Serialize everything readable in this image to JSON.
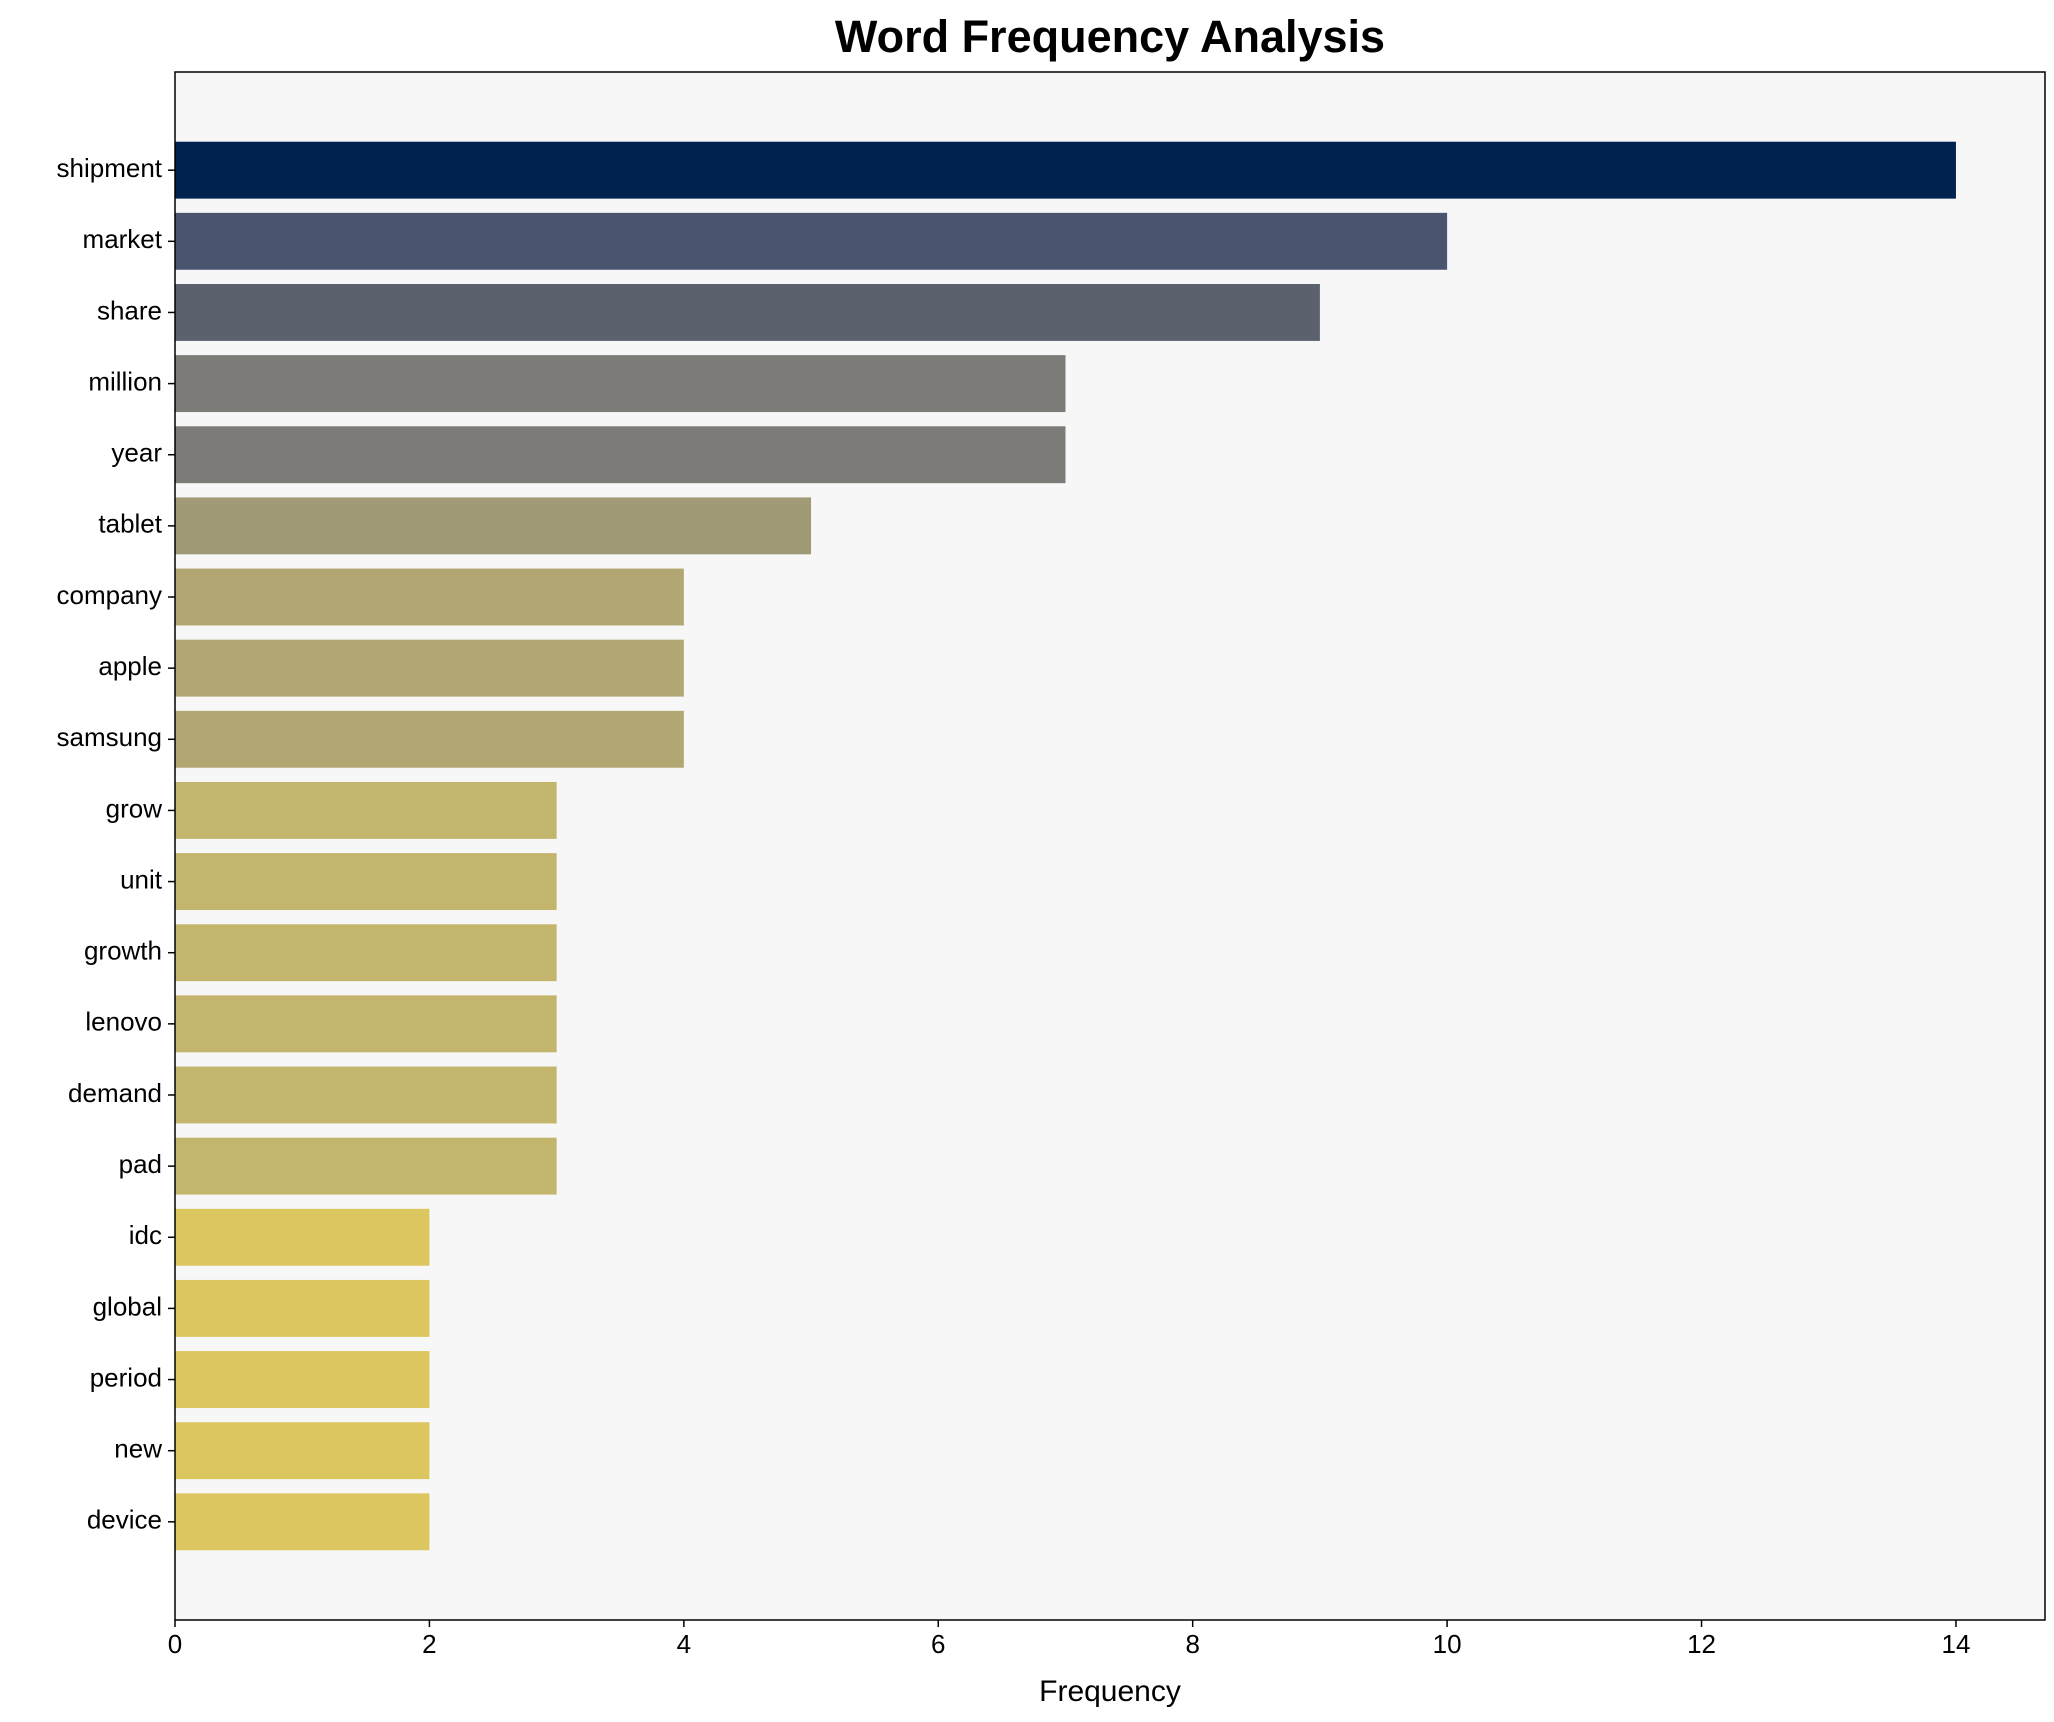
{
  "chart_data": {
    "type": "barh",
    "title": "Word Frequency Analysis",
    "x_label": "Frequency",
    "categories": [
      "shipment",
      "market",
      "share",
      "million",
      "year",
      "tablet",
      "company",
      "apple",
      "samsung",
      "grow",
      "unit",
      "growth",
      "lenovo",
      "demand",
      "pad",
      "idc",
      "global",
      "period",
      "new",
      "device"
    ],
    "values": [
      14,
      10,
      9,
      7,
      7,
      5,
      4,
      4,
      4,
      3,
      3,
      3,
      3,
      3,
      3,
      2,
      2,
      2,
      2,
      2
    ],
    "colors": [
      "#00224e",
      "#4a546e",
      "#5c616e",
      "#7c7b78",
      "#7c7b78",
      "#a19a76",
      "#b2a772",
      "#b2a772",
      "#b2a772",
      "#c4b56c",
      "#c4b56c",
      "#c4b56c",
      "#c4b56c",
      "#c4b56c",
      "#c4b56c",
      "#dbc65f",
      "#dbc65f",
      "#dbc65f",
      "#dbc65f",
      "#dbc65f"
    ],
    "xlim": [
      0,
      14.7
    ],
    "xticks": [
      0,
      2,
      4,
      6,
      8,
      10,
      12,
      14
    ]
  }
}
